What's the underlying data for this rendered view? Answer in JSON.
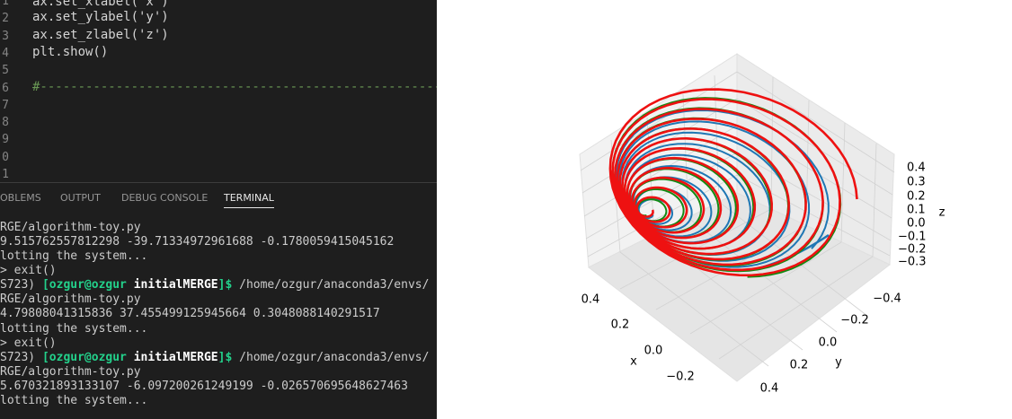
{
  "editor": {
    "line_numbers": [
      "1",
      "2",
      "3",
      "4",
      "5",
      "6",
      "7",
      "8",
      "9",
      "0",
      "1"
    ],
    "code": [
      "ax.set_xlabel('x')",
      "ax.set_ylabel('y')",
      "ax.set_zlabel('z')",
      "plt.show()",
      "#-----------------------------------------------------------"
    ]
  },
  "panel": {
    "tabs": [
      "OBLEMS",
      "OUTPUT",
      "DEBUG CONSOLE",
      "TERMINAL"
    ]
  },
  "terminal": {
    "lines": [
      "RGE/algorithm-toy.py",
      "9.515762557812298 -39.71334972961688 -0.1780059415045162",
      "lotting the system...",
      "> exit()",
      [
        "S723) ",
        "[ozgur@ozgur ",
        "initialMERGE",
        "]$ ",
        "/home/ozgur/anaconda3/envs/"
      ],
      "RGE/algorithm-toy.py",
      "4.79808041315836 37.455499125945664 0.3048088140291517",
      "lotting the system...",
      "> exit()",
      [
        "S723) ",
        "[ozgur@ozgur ",
        "initialMERGE",
        "]$ ",
        "/home/ozgur/anaconda3/envs/"
      ],
      "RGE/algorithm-toy.py",
      "5.670321893133107 -6.097200261249199 -0.026570695648627463",
      "lotting the system..."
    ]
  },
  "plot": {
    "x_label": "x",
    "y_label": "y",
    "z_label": "z",
    "x_ticks": [
      "0.4",
      "0.2",
      "0.0",
      "−0.2"
    ],
    "y_ticks": [
      "−0.4",
      "−0.2",
      "0.0",
      "0.2",
      "0.4"
    ],
    "z_ticks": [
      "0.4",
      "0.3",
      "0.2",
      "0.1",
      "0.0",
      "−0.1",
      "−0.2",
      "−0.3"
    ]
  }
}
